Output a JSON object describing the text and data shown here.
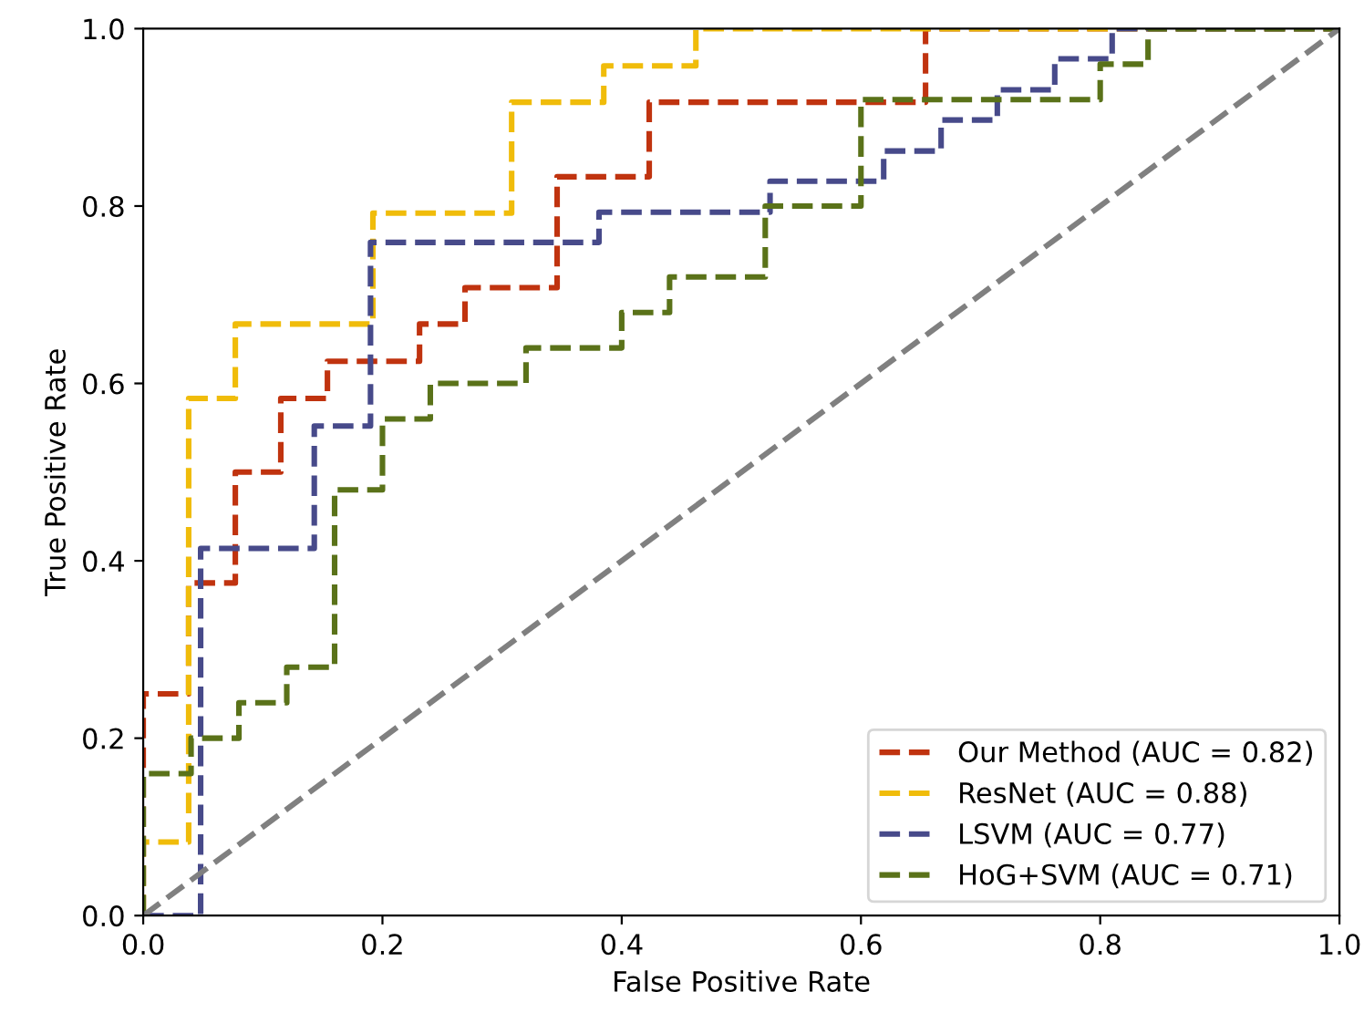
{
  "chart_data": {
    "type": "step",
    "xlabel": "False Positive Rate",
    "ylabel": "True Positive Rate",
    "xlim": [
      0.0,
      1.0
    ],
    "ylim": [
      0.0,
      1.0
    ],
    "xticks": [
      {
        "value": 0,
        "label": "0.0"
      },
      {
        "value": 0.2,
        "label": "0.2"
      },
      {
        "value": 0.4,
        "label": "0.4"
      },
      {
        "value": 0.6,
        "label": "0.6"
      },
      {
        "value": 0.8,
        "label": "0.8"
      },
      {
        "value": 1,
        "label": "1.0"
      }
    ],
    "yticks": [
      {
        "value": 0,
        "label": "0.0"
      },
      {
        "value": 0.2,
        "label": "0.2"
      },
      {
        "value": 0.4,
        "label": "0.4"
      },
      {
        "value": 0.6,
        "label": "0.6"
      },
      {
        "value": 0.8,
        "label": "0.8"
      },
      {
        "value": 1,
        "label": "1.0"
      }
    ],
    "grid": false,
    "legend": "bottom right",
    "line_style": "dashed",
    "marker": "none",
    "series": [
      {
        "name": "Our Method (AUC = 0.82)",
        "color": "#c0330f",
        "x": [
          0,
          0,
          0.038,
          0.077,
          0.115,
          0.154,
          0.231,
          0.269,
          0.346,
          0.423,
          0.654,
          1.0
        ],
        "values": [
          0,
          0.25,
          0.375,
          0.5,
          0.583,
          0.625,
          0.667,
          0.708,
          0.833,
          0.917,
          1.0,
          1.0
        ]
      },
      {
        "name": "ResNet (AUC = 0.88)",
        "color": "#f0bc0a",
        "x": [
          0,
          0,
          0.038,
          0.077,
          0.192,
          0.308,
          0.385,
          0.462,
          1.0
        ],
        "values": [
          0,
          0.083,
          0.583,
          0.667,
          0.792,
          0.917,
          0.958,
          1.0,
          1.0
        ]
      },
      {
        "name": "LSVM (AUC = 0.77)",
        "color": "#474a8a",
        "x": [
          0,
          0.048,
          0.143,
          0.19,
          0.381,
          0.524,
          0.619,
          0.667,
          0.714,
          0.762,
          0.81,
          1.0
        ],
        "values": [
          0,
          0.414,
          0.552,
          0.759,
          0.793,
          0.828,
          0.862,
          0.897,
          0.931,
          0.966,
          1.0,
          1.0
        ]
      },
      {
        "name": "HoG+SVM (AUC = 0.71)",
        "color": "#5a7219",
        "x": [
          0,
          0,
          0.04,
          0.08,
          0.12,
          0.16,
          0.2,
          0.24,
          0.32,
          0.4,
          0.44,
          0.52,
          0.6,
          0.8,
          0.84,
          1.0
        ],
        "values": [
          0,
          0.16,
          0.2,
          0.24,
          0.28,
          0.48,
          0.56,
          0.6,
          0.64,
          0.68,
          0.72,
          0.8,
          0.92,
          0.96,
          1.0,
          1.0
        ]
      },
      {
        "type": "line",
        "color": "#808080",
        "x": [
          0,
          1
        ],
        "values": [
          0,
          1
        ]
      }
    ]
  }
}
